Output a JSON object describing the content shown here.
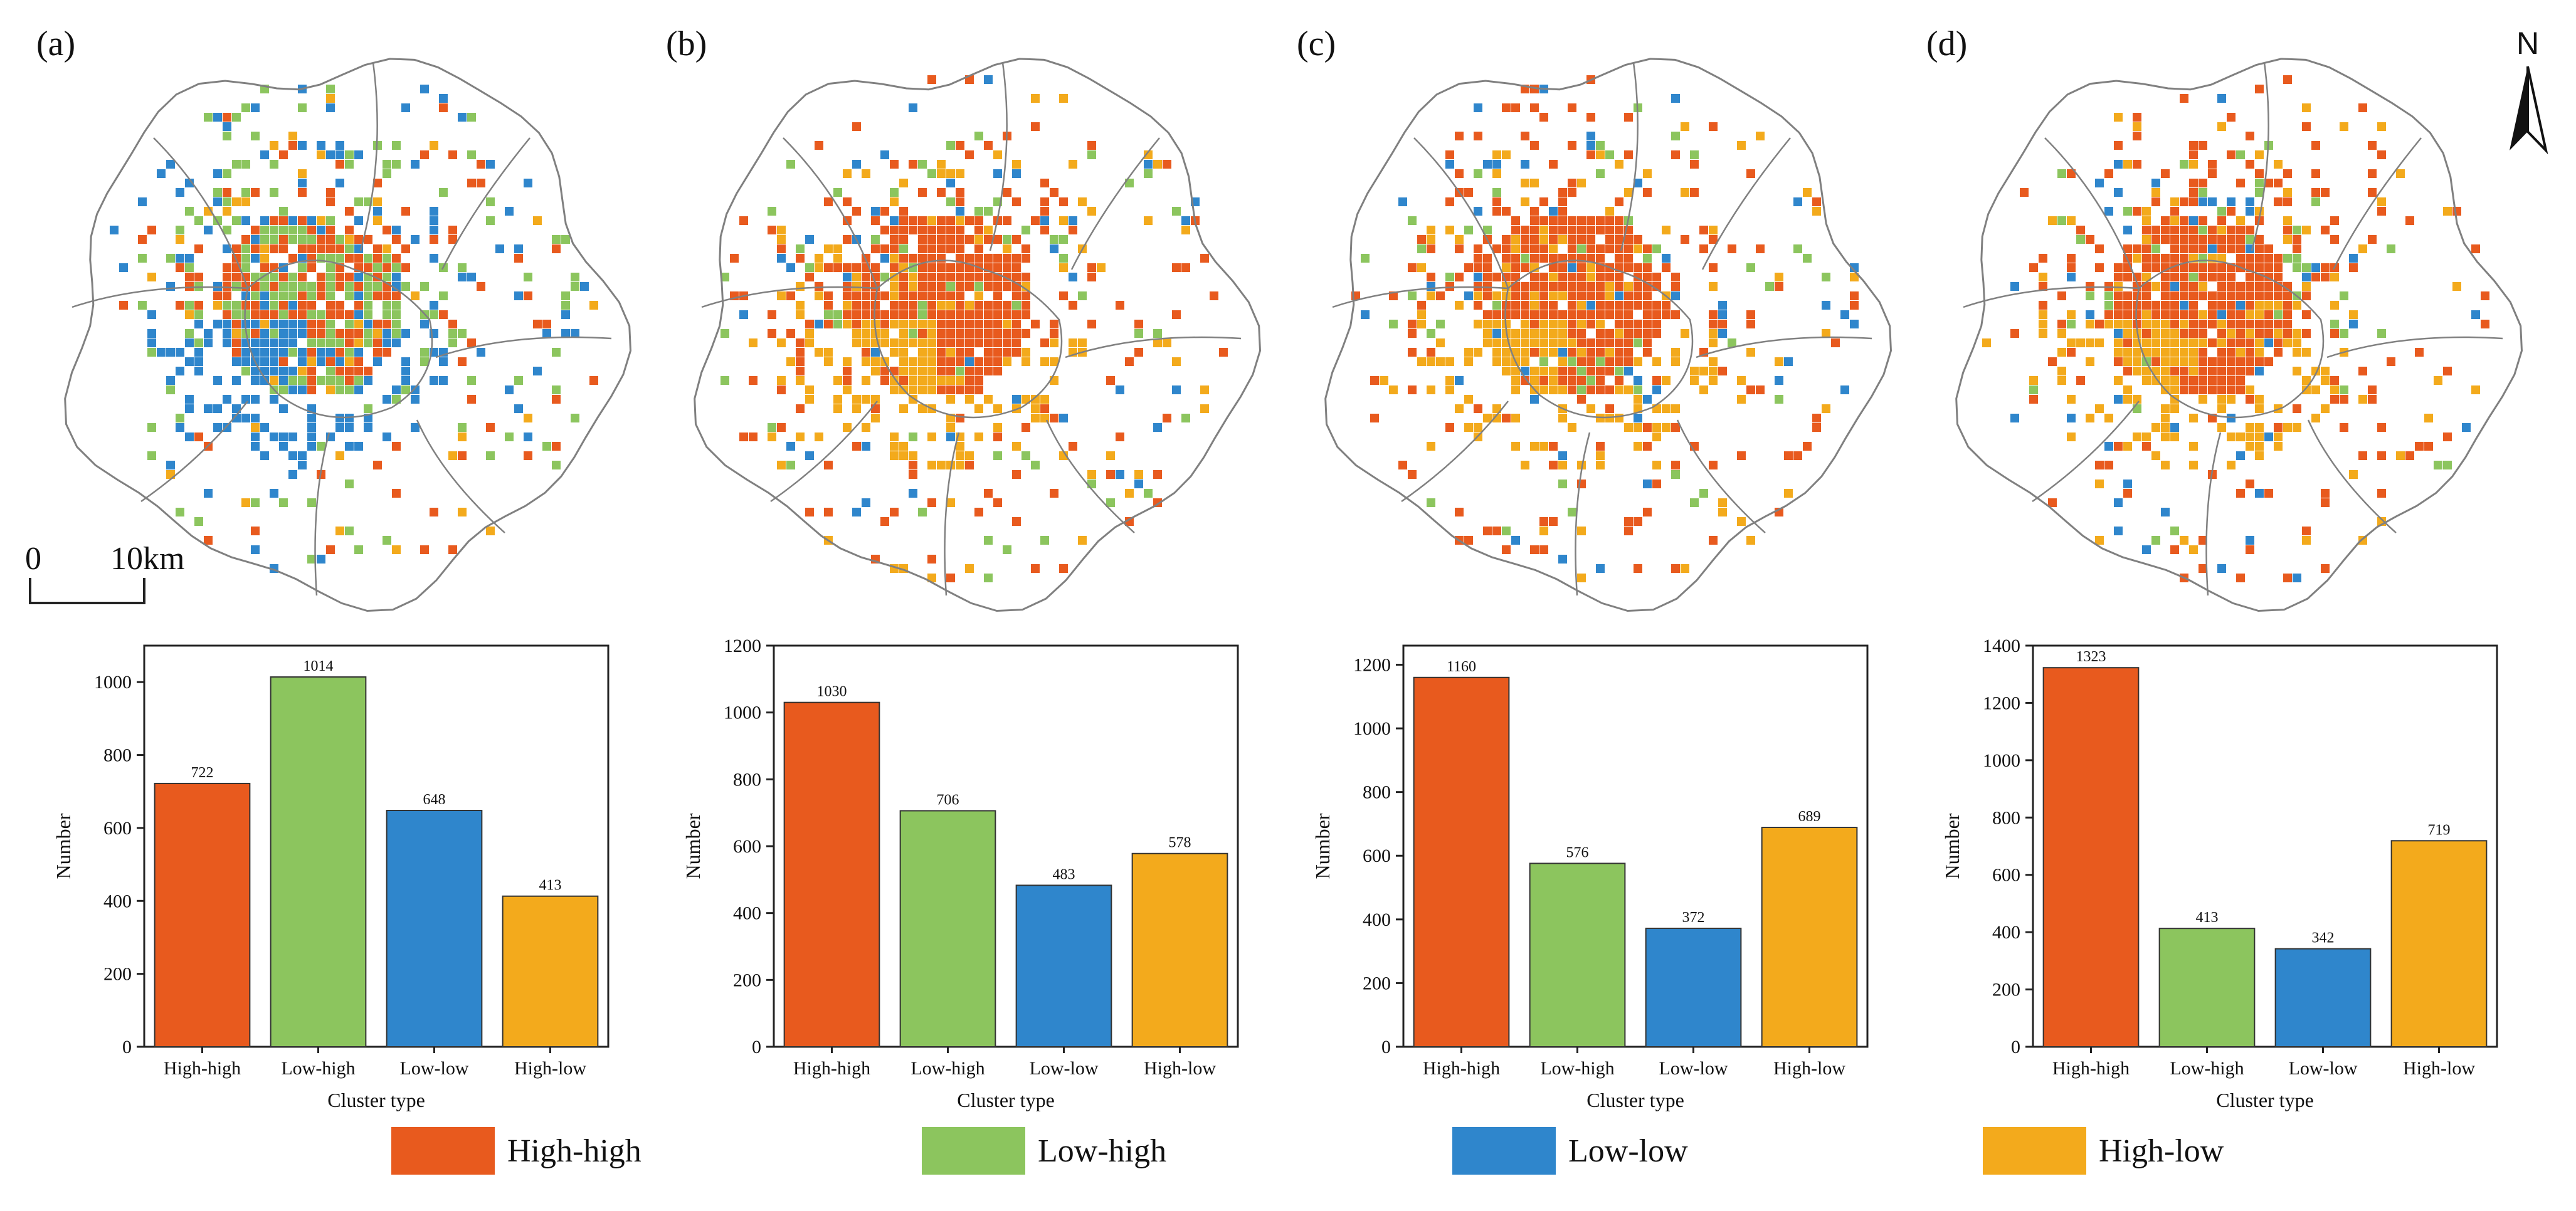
{
  "colors": {
    "high_high": "#e85a1e",
    "low_high": "#8cc55e",
    "low_low": "#2f86cc",
    "high_low": "#f3aa1c",
    "boundary": "#808080",
    "axis": "#222222"
  },
  "scale_bar": {
    "zero": "0",
    "distance": "10km"
  },
  "north_arrow": {
    "label": "N"
  },
  "legend": [
    {
      "label": "High-high",
      "color": "#e85a1e"
    },
    {
      "label": "Low-high",
      "color": "#8cc55e"
    },
    {
      "label": "Low-low",
      "color": "#2f86cc"
    },
    {
      "label": "High-low",
      "color": "#f3aa1c"
    }
  ],
  "panels": [
    {
      "label": "(a)"
    },
    {
      "label": "(b)"
    },
    {
      "label": "(c)"
    },
    {
      "label": "(d)"
    }
  ],
  "chart_data": [
    {
      "type": "bar",
      "panel": "(a)",
      "categories": [
        "High-high",
        "Low-high",
        "Low-low",
        "High-low"
      ],
      "values": [
        722,
        1014,
        648,
        413
      ],
      "xlabel": "Cluster type",
      "ylabel": "Number",
      "ylim": [
        0,
        1100
      ],
      "yticks": [
        0,
        200,
        400,
        600,
        800,
        1000
      ]
    },
    {
      "type": "bar",
      "panel": "(b)",
      "categories": [
        "High-high",
        "Low-high",
        "Low-low",
        "High-low"
      ],
      "values": [
        1030,
        706,
        483,
        578
      ],
      "xlabel": "Cluster type",
      "ylabel": "Number",
      "ylim": [
        0,
        1200
      ],
      "yticks": [
        0,
        200,
        400,
        600,
        800,
        1000,
        1200
      ]
    },
    {
      "type": "bar",
      "panel": "(c)",
      "categories": [
        "High-high",
        "Low-high",
        "Low-low",
        "High-low"
      ],
      "values": [
        1160,
        576,
        372,
        689
      ],
      "xlabel": "Cluster type",
      "ylabel": "Number",
      "ylim": [
        0,
        1260
      ],
      "yticks": [
        0,
        200,
        400,
        600,
        800,
        1000,
        1200
      ]
    },
    {
      "type": "bar",
      "panel": "(d)",
      "categories": [
        "High-high",
        "Low-high",
        "Low-low",
        "High-low"
      ],
      "values": [
        1323,
        413,
        342,
        719
      ],
      "xlabel": "Cluster type",
      "ylabel": "Number",
      "ylim": [
        0,
        1400
      ],
      "yticks": [
        0,
        200,
        400,
        600,
        800,
        1000,
        1200,
        1400
      ]
    }
  ]
}
